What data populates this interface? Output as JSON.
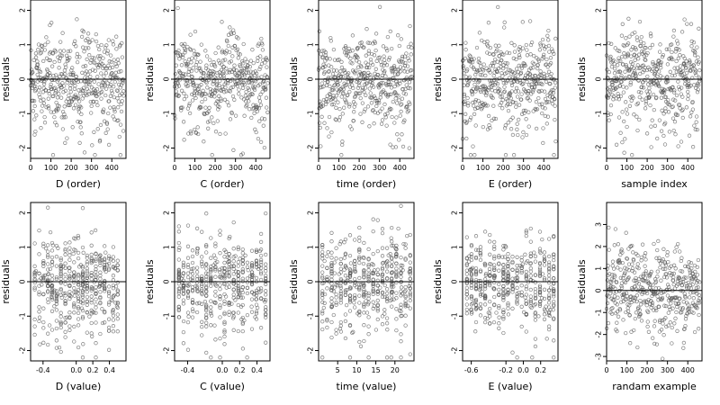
{
  "chart_data": [
    {
      "type": "scatter",
      "xlabel": "D (order)",
      "ylabel": "residuals",
      "xlim": [
        0,
        470
      ],
      "ylim": [
        -2.3,
        2.3
      ],
      "xticks": [
        0,
        100,
        200,
        300,
        400
      ],
      "yticks": [
        -2,
        -1,
        0,
        1,
        2
      ],
      "reference_line_y": 0,
      "n_points": 460,
      "x_kind": "order",
      "points_note": "residuals vs observation order"
    },
    {
      "type": "scatter",
      "xlabel": "C (order)",
      "ylabel": "residuals",
      "xlim": [
        0,
        470
      ],
      "ylim": [
        -2.3,
        2.3
      ],
      "xticks": [
        0,
        100,
        200,
        300,
        400
      ],
      "yticks": [
        -2,
        -1,
        0,
        1,
        2
      ],
      "reference_line_y": 0,
      "n_points": 460,
      "x_kind": "order",
      "points_note": "residuals vs observation order"
    },
    {
      "type": "scatter",
      "xlabel": "time (order)",
      "ylabel": "residuals",
      "xlim": [
        0,
        470
      ],
      "ylim": [
        -2.3,
        2.3
      ],
      "xticks": [
        0,
        100,
        200,
        300,
        400
      ],
      "yticks": [
        -2,
        -1,
        0,
        1,
        2
      ],
      "reference_line_y": 0,
      "n_points": 460,
      "x_kind": "order",
      "points_note": "residuals vs observation order"
    },
    {
      "type": "scatter",
      "xlabel": "E (order)",
      "ylabel": "residuals",
      "xlim": [
        0,
        470
      ],
      "ylim": [
        -2.3,
        2.3
      ],
      "xticks": [
        0,
        100,
        200,
        300,
        400
      ],
      "yticks": [
        -2,
        -1,
        0,
        1,
        2
      ],
      "reference_line_y": 0,
      "n_points": 460,
      "x_kind": "order",
      "points_note": "residuals vs observation order"
    },
    {
      "type": "scatter",
      "xlabel": "sample index",
      "ylabel": "residuals",
      "xlim": [
        0,
        470
      ],
      "ylim": [
        -2.3,
        2.3
      ],
      "xticks": [
        0,
        100,
        200,
        300,
        400
      ],
      "yticks": [
        -2,
        -1,
        0,
        1,
        2
      ],
      "reference_line_y": 0,
      "n_points": 460,
      "x_kind": "order",
      "points_note": "residuals vs observation order"
    },
    {
      "type": "scatter",
      "xlabel": "D (value)",
      "ylabel": "residuals",
      "xlim": [
        -0.55,
        0.6
      ],
      "ylim": [
        -2.3,
        2.3
      ],
      "xticks": [
        -0.4,
        0.0,
        0.2,
        0.4
      ],
      "xtick_labels": [
        "-0.4",
        "0.0",
        "0.2",
        "0.4"
      ],
      "yticks": [
        -2,
        -1,
        0,
        1,
        2
      ],
      "reference_line_y": 0,
      "n_points": 460,
      "x_kind": "value",
      "xrange_data": [
        -0.5,
        0.5
      ],
      "points_note": "residuals vs covariate value"
    },
    {
      "type": "scatter",
      "xlabel": "C (value)",
      "ylabel": "residuals",
      "xlim": [
        -0.55,
        0.55
      ],
      "ylim": [
        -2.3,
        2.3
      ],
      "xticks": [
        -0.4,
        0.0,
        0.2,
        0.4
      ],
      "xtick_labels": [
        "-0.4",
        "0.0",
        "0.2",
        "0.4"
      ],
      "yticks": [
        -2,
        -1,
        0,
        1,
        2
      ],
      "reference_line_y": 0,
      "n_points": 460,
      "x_kind": "value",
      "xrange_data": [
        -0.5,
        0.5
      ],
      "points_note": "residuals vs covariate value"
    },
    {
      "type": "scatter",
      "xlabel": "time (value)",
      "ylabel": "residuals",
      "xlim": [
        0,
        25
      ],
      "ylim": [
        -2.3,
        2.3
      ],
      "xticks": [
        5,
        10,
        15,
        20
      ],
      "xtick_labels": [
        "5",
        "10",
        "15",
        "20"
      ],
      "yticks": [
        -2,
        -1,
        0,
        1,
        2
      ],
      "reference_line_y": 0,
      "n_points": 460,
      "x_kind": "value",
      "xrange_data": [
        1,
        24
      ],
      "points_note": "residuals vs covariate value"
    },
    {
      "type": "scatter",
      "xlabel": "E (value)",
      "ylabel": "residuals",
      "xlim": [
        -0.7,
        0.4
      ],
      "ylim": [
        -2.3,
        2.3
      ],
      "xticks": [
        -0.6,
        -0.2,
        0.0,
        0.2
      ],
      "xtick_labels": [
        "-0.6",
        "-0.2",
        "0.0",
        "0.2"
      ],
      "yticks": [
        -2,
        -1,
        0,
        1,
        2
      ],
      "reference_line_y": 0,
      "n_points": 460,
      "x_kind": "value",
      "xrange_data": [
        -0.65,
        0.35
      ],
      "points_note": "residuals vs covariate value"
    },
    {
      "type": "scatter",
      "xlabel": "randam example",
      "ylabel": "residuals",
      "xlim": [
        0,
        470
      ],
      "ylim": [
        -3.2,
        4.0
      ],
      "xticks": [
        0,
        100,
        200,
        300,
        400
      ],
      "yticks": [
        -3,
        -2,
        -1,
        0,
        1,
        2,
        3
      ],
      "reference_line_y": 0,
      "n_points": 460,
      "x_kind": "random",
      "points_note": "random normal residuals for comparison"
    }
  ]
}
